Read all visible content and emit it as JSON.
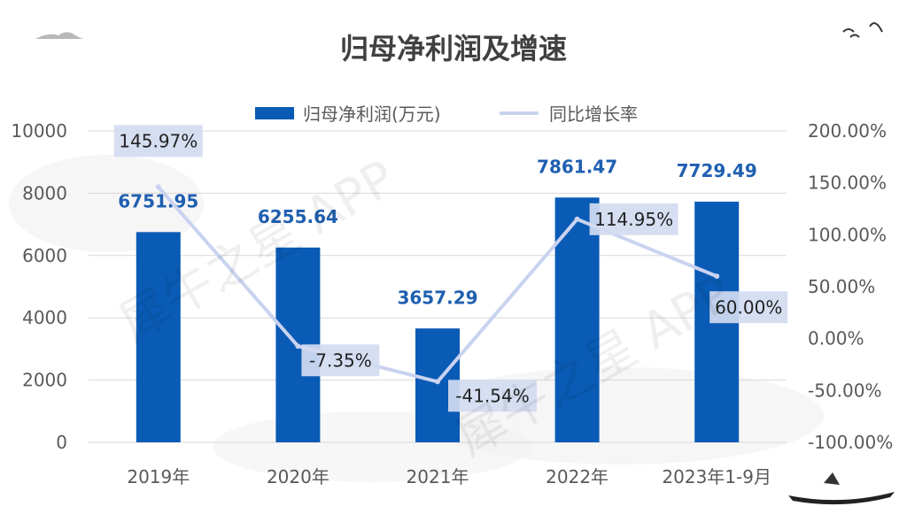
{
  "chart_data": {
    "type": "bar",
    "title": "归母净利润及增速",
    "categories": [
      "2019年",
      "2020年",
      "2021年",
      "2022年",
      "2023年1-9月"
    ],
    "series": [
      {
        "name": "归母净利润(万元)",
        "type": "bar",
        "axis": "left",
        "color": "#0a5bb5",
        "values": [
          6751.95,
          6255.64,
          3657.29,
          7861.47,
          7729.49
        ],
        "labels": [
          "6751.95",
          "6255.64",
          "3657.29",
          "7861.47",
          "7729.49"
        ]
      },
      {
        "name": "同比增长率",
        "type": "line",
        "axis": "right",
        "color": "#c9d3f0",
        "values": [
          145.97,
          -7.35,
          -41.54,
          114.95,
          60.0
        ],
        "labels": [
          "145.97%",
          "-7.35%",
          "-41.54%",
          "114.95%",
          "60.00%"
        ]
      }
    ],
    "y_left": {
      "range": [
        0,
        10000
      ],
      "ticks": [
        "0",
        "2000",
        "4000",
        "6000",
        "8000",
        "10000"
      ]
    },
    "y_right": {
      "range": [
        -100,
        200
      ],
      "ticks": [
        "-100.00%",
        "-50.00%",
        "0.00%",
        "50.00%",
        "100.00%",
        "150.00%",
        "200.00%"
      ]
    },
    "grid": true,
    "legend_position": "top-center"
  },
  "watermark": "犀牛之星 APP"
}
